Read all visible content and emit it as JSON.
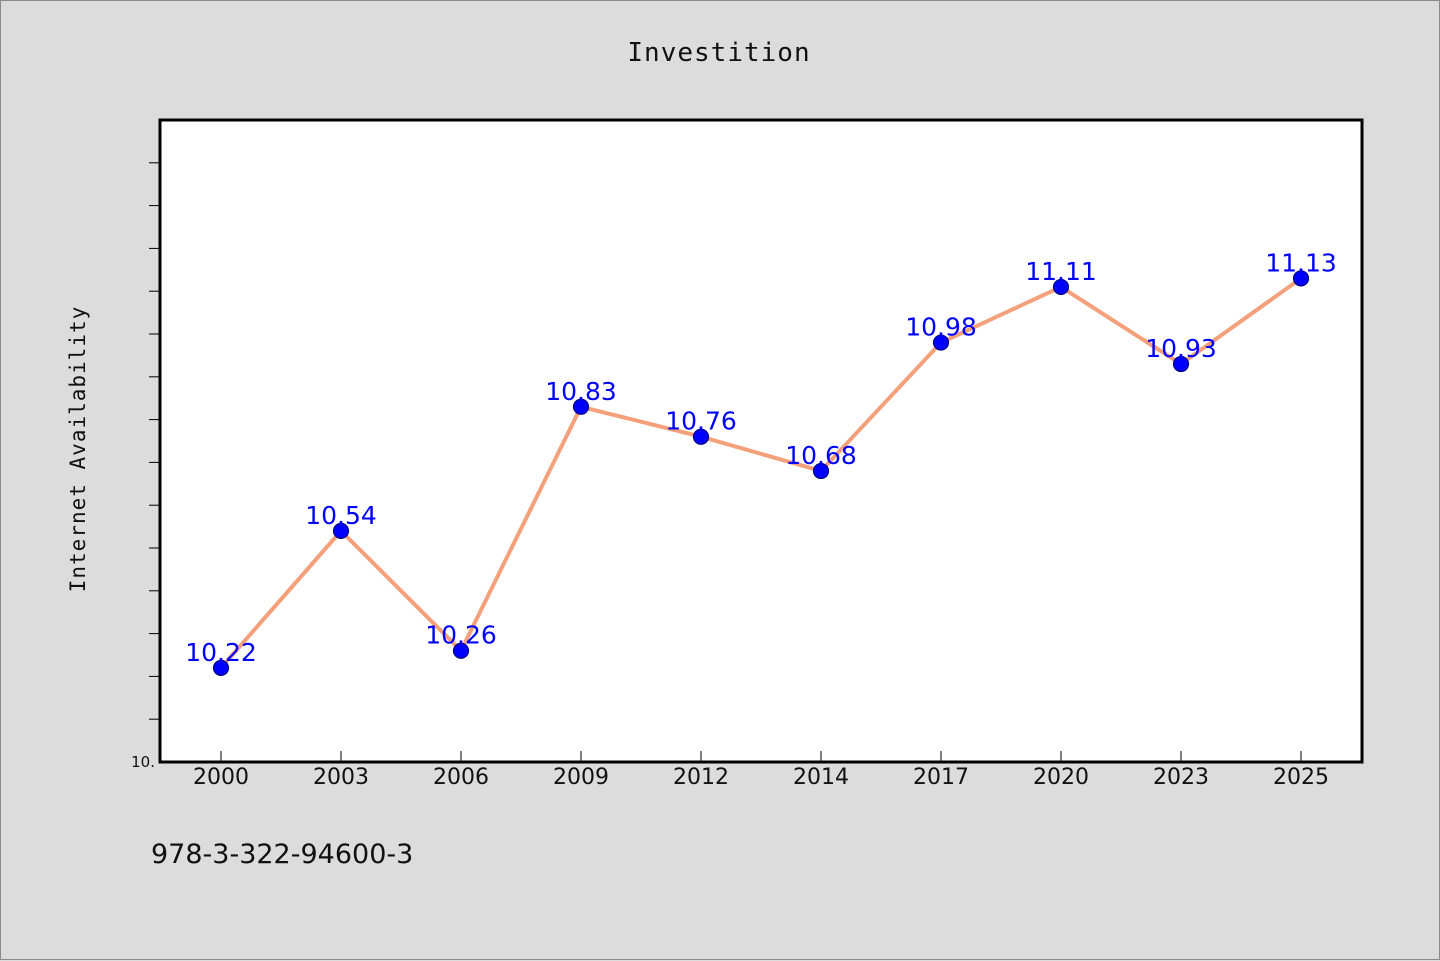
{
  "chart_data": {
    "type": "line",
    "title": "Investition",
    "xlabel": "",
    "ylabel": "Internet Availability",
    "categories": [
      "2000",
      "2003",
      "2006",
      "2009",
      "2012",
      "2014",
      "2017",
      "2020",
      "2023",
      "2025"
    ],
    "series": [
      {
        "values": [
          10.22,
          10.54,
          10.26,
          10.83,
          10.76,
          10.68,
          10.98,
          11.11,
          10.93,
          11.13
        ]
      }
    ],
    "data_labels": [
      "10.22",
      "10.54",
      "10.26",
      "10.83",
      "10.76",
      "10.68",
      "10.98",
      "11.11",
      "10.93",
      "11.13"
    ],
    "ylim": [
      10.0,
      11.5
    ],
    "y_tick_label": "10.",
    "grid": false,
    "legend": "none",
    "colors": {
      "line": "#f4a07a",
      "marker": "#0000ff",
      "marker_edge": "#000080",
      "data_label": "#0000ff",
      "plot_background": "#ffffff",
      "figure_background": "#dcdcdc"
    }
  },
  "footer": {
    "isbn": "978-3-322-94600-3"
  }
}
